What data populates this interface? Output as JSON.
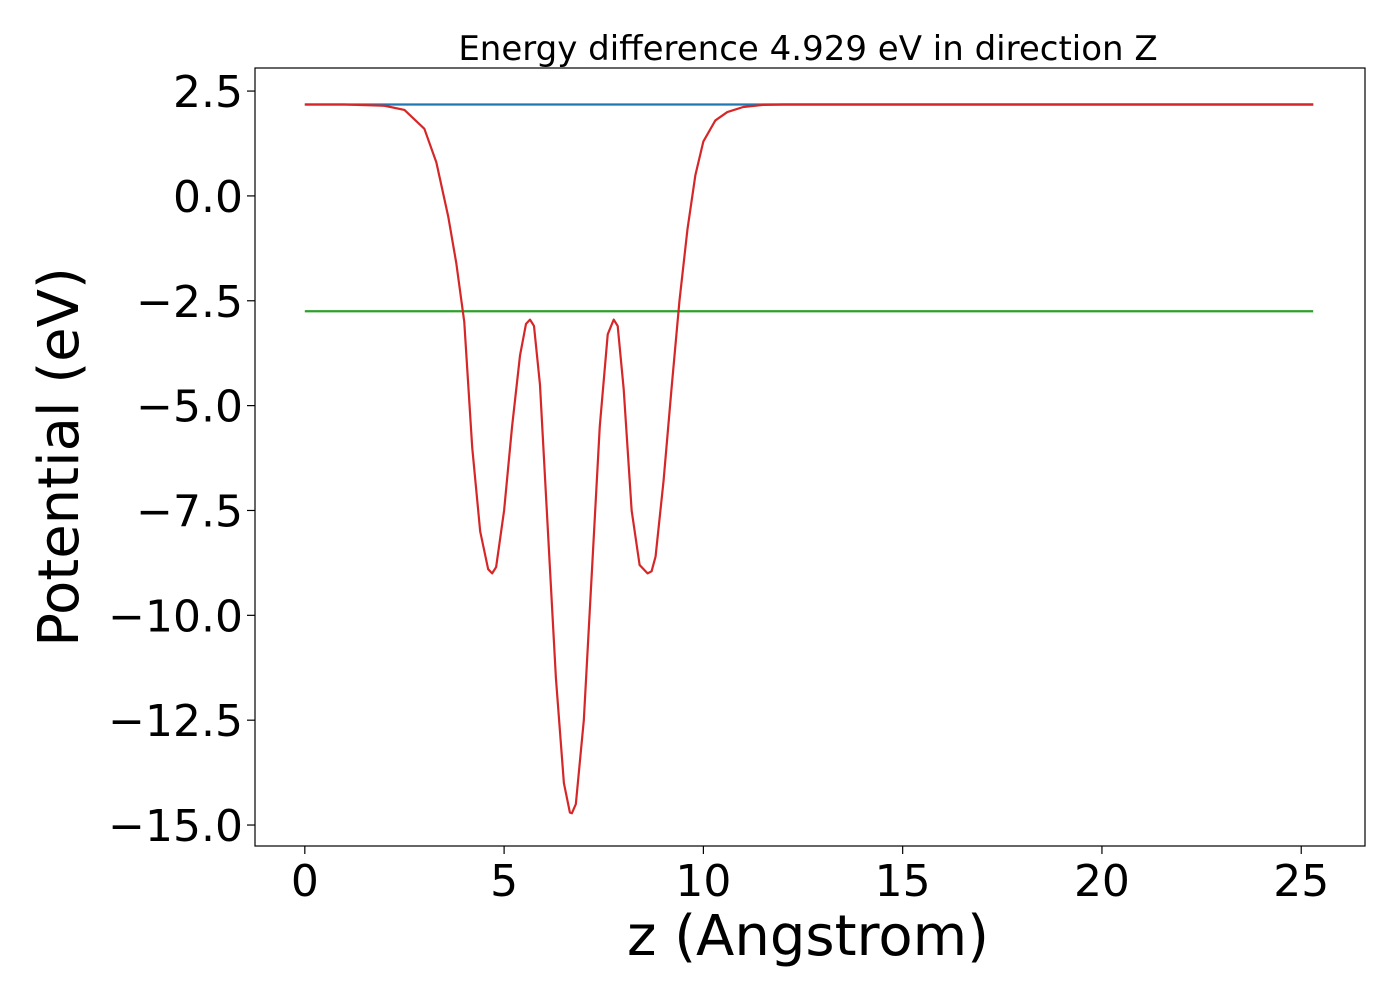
{
  "chart_data": {
    "type": "line",
    "title": "Energy difference 4.929 eV in direction Z",
    "xlabel": "z (Angstrom)",
    "ylabel": "Potential (eV)",
    "xlim": [
      -1.25,
      26.6
    ],
    "ylim": [
      -15.5,
      3.05
    ],
    "x_ticks": [
      0,
      5,
      10,
      15,
      20,
      25
    ],
    "x_tick_labels": [
      "0",
      "5",
      "10",
      "15",
      "20",
      "25"
    ],
    "y_ticks": [
      2.5,
      0.0,
      -2.5,
      -5.0,
      -7.5,
      -10.0,
      -12.5,
      -15.0
    ],
    "y_tick_labels": [
      "2.5",
      "0.0",
      "−2.5",
      "−5.0",
      "−7.5",
      "−10.0",
      "−12.5",
      "−15.0"
    ],
    "grid": false,
    "legend": "none",
    "series": [
      {
        "color": "#1f77b4",
        "x": [
          0,
          25.3
        ],
        "y": [
          2.18,
          2.18
        ]
      },
      {
        "color": "#2ca02c",
        "x": [
          0,
          25.3
        ],
        "y": [
          -2.75,
          -2.75
        ]
      },
      {
        "color": "#9467bd",
        "x": [
          11.5,
          25.3
        ],
        "y": [
          2.18,
          2.18
        ]
      },
      {
        "color": "#d62728",
        "x": [
          0,
          1.0,
          2.0,
          2.5,
          3.0,
          3.3,
          3.6,
          3.8,
          4.0,
          4.2,
          4.4,
          4.6,
          4.7,
          4.8,
          5.0,
          5.2,
          5.4,
          5.55,
          5.65,
          5.75,
          5.9,
          6.1,
          6.3,
          6.5,
          6.65,
          6.7,
          6.8,
          7.0,
          7.2,
          7.4,
          7.6,
          7.75,
          7.85,
          8.0,
          8.2,
          8.4,
          8.6,
          8.7,
          8.8,
          9.0,
          9.2,
          9.4,
          9.6,
          9.8,
          10.0,
          10.3,
          10.6,
          11.0,
          11.5,
          12.0,
          13.0,
          15.0,
          20.0,
          25.3
        ],
        "y": [
          2.18,
          2.18,
          2.15,
          2.05,
          1.6,
          0.8,
          -0.5,
          -1.6,
          -3.0,
          -6.0,
          -8.0,
          -8.9,
          -9.0,
          -8.85,
          -7.5,
          -5.5,
          -3.8,
          -3.05,
          -2.95,
          -3.1,
          -4.5,
          -8.0,
          -11.5,
          -14.0,
          -14.7,
          -14.72,
          -14.5,
          -12.5,
          -9.0,
          -5.5,
          -3.3,
          -2.95,
          -3.1,
          -4.6,
          -7.5,
          -8.8,
          -9.0,
          -8.95,
          -8.6,
          -6.8,
          -4.6,
          -2.5,
          -0.8,
          0.5,
          1.3,
          1.8,
          2.0,
          2.12,
          2.17,
          2.18,
          2.18,
          2.18,
          2.18,
          2.18
        ]
      }
    ]
  }
}
